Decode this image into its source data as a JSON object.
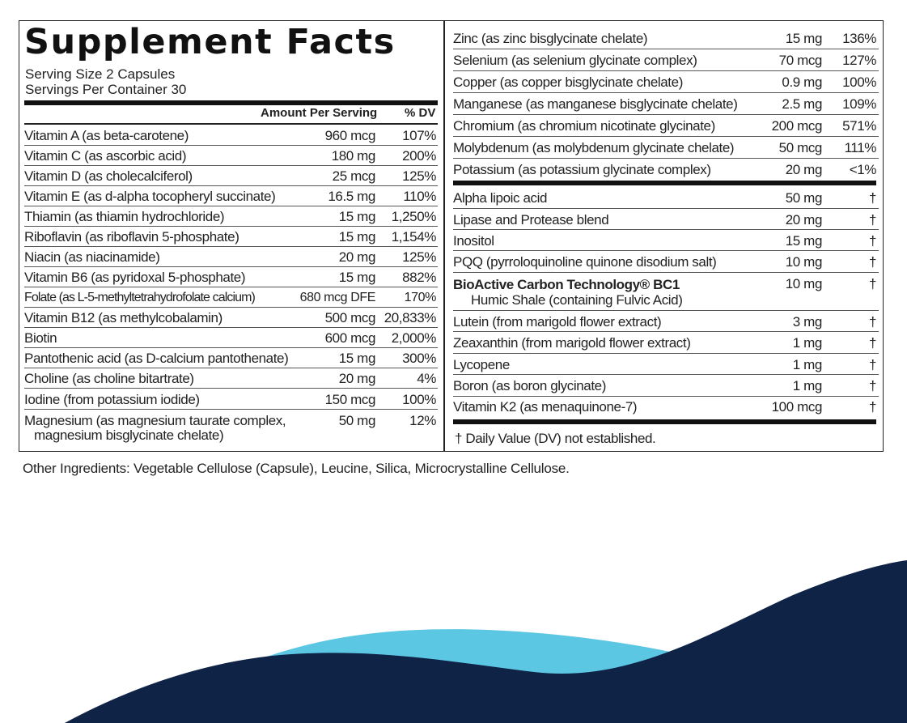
{
  "label": {
    "title": "Supplement Facts",
    "serving_size": "Serving Size 2 Capsules",
    "servings_per_container": "Servings Per Container 30",
    "col_amount": "Amount Per Serving",
    "col_dv": "% DV"
  },
  "left_rows": [
    {
      "name": "Vitamin A (as beta-carotene)",
      "amount": "960 mcg",
      "dv": "107%"
    },
    {
      "name": "Vitamin C (as ascorbic acid)",
      "amount": "180 mg",
      "dv": "200%"
    },
    {
      "name": "Vitamin D (as cholecalciferol)",
      "amount": "25 mcg",
      "dv": "125%"
    },
    {
      "name": "Vitamin E (as d-alpha tocopheryl  succinate)",
      "amount": "16.5 mg",
      "dv": "110%"
    },
    {
      "name": "Thiamin (as thiamin hydrochloride)",
      "amount": "15 mg",
      "dv": "1,250%"
    },
    {
      "name": "Riboflavin (as riboflavin 5-phosphate)",
      "amount": "15 mg",
      "dv": "1,154%"
    },
    {
      "name": "Niacin (as niacinamide)",
      "amount": "20 mg",
      "dv": "125%"
    },
    {
      "name": "Vitamin B6 (as pyridoxal 5-phosphate)",
      "amount": "15 mg",
      "dv": "882%"
    },
    {
      "name": "Folate (as L-5-methyltetrahydrofolate calcium)",
      "amount": "680 mcg DFE",
      "dv": "170%"
    },
    {
      "name": "Vitamin B12 (as methylcobalamin)",
      "amount": "500 mcg",
      "dv": "20,833%"
    },
    {
      "name": "Biotin",
      "amount": "600 mcg",
      "dv": "2,000%"
    },
    {
      "name": "Pantothenic acid (as D-calcium pantothenate)",
      "amount": "15 mg",
      "dv": "300%"
    },
    {
      "name": "Choline (as choline bitartrate)",
      "amount": "20 mg",
      "dv": "4%"
    },
    {
      "name": "Iodine (from potassium iodide)",
      "amount": "150 mcg",
      "dv": "100%"
    },
    {
      "name": "Magnesium (as magnesium taurate complex,",
      "name_line2": "magnesium bisglycinate chelate)",
      "amount": "50 mg",
      "dv": "12%"
    }
  ],
  "right_minerals": [
    {
      "name": "Zinc (as zinc bisglycinate chelate)",
      "amount": "15 mg",
      "dv": "136%"
    },
    {
      "name": "Selenium (as selenium glycinate complex)",
      "amount": "70 mcg",
      "dv": "127%"
    },
    {
      "name": "Copper (as copper bisglycinate chelate)",
      "amount": "0.9 mg",
      "dv": "100%"
    },
    {
      "name": "Manganese (as manganese bisglycinate chelate)",
      "amount": "2.5 mg",
      "dv": "109%"
    },
    {
      "name": "Chromium (as chromium nicotinate glycinate)",
      "amount": "200 mcg",
      "dv": "571%"
    },
    {
      "name": "Molybdenum (as molybdenum glycinate chelate)",
      "amount": "50 mcg",
      "dv": "111%"
    },
    {
      "name": "Potassium (as potassium glycinate complex)",
      "amount": "20 mg",
      "dv": "<1%"
    }
  ],
  "right_other": [
    {
      "name": "Alpha lipoic acid",
      "amount": "50 mg",
      "dv": "†"
    },
    {
      "name": "Lipase and Protease blend",
      "amount": "20 mg",
      "dv": "†"
    },
    {
      "name": "Inositol",
      "amount": "15 mg",
      "dv": "†"
    },
    {
      "name": "PQQ (pyrroloquinoline quinone disodium salt)",
      "amount": "10 mg",
      "dv": "†"
    },
    {
      "name": "BioActive Carbon Technology® BC1",
      "name_line2": "Humic Shale (containing Fulvic Acid)",
      "amount": "10 mg",
      "dv": "†"
    },
    {
      "name": "Lutein (from marigold flower extract)",
      "amount": "3 mg",
      "dv": "†"
    },
    {
      "name": "Zeaxanthin (from marigold flower extract)",
      "amount": "1 mg",
      "dv": "†"
    },
    {
      "name": "Lycopene",
      "amount": "1 mg",
      "dv": "†"
    },
    {
      "name": "Boron (as boron glycinate)",
      "amount": "1 mg",
      "dv": "†"
    },
    {
      "name": "Vitamin K2 (as menaquinone-7)",
      "amount": "100 mcg",
      "dv": "†"
    }
  ],
  "footnote": "† Daily Value (DV) not established.",
  "other_ingredients": "Other Ingredients: Vegetable Cellulose (Capsule), Leucine, Silica, Microcrystalline Cellulose.",
  "colors": {
    "wave_dark": "#0f2347",
    "wave_light": "#5cc7e3",
    "text": "#1a1a1a"
  }
}
